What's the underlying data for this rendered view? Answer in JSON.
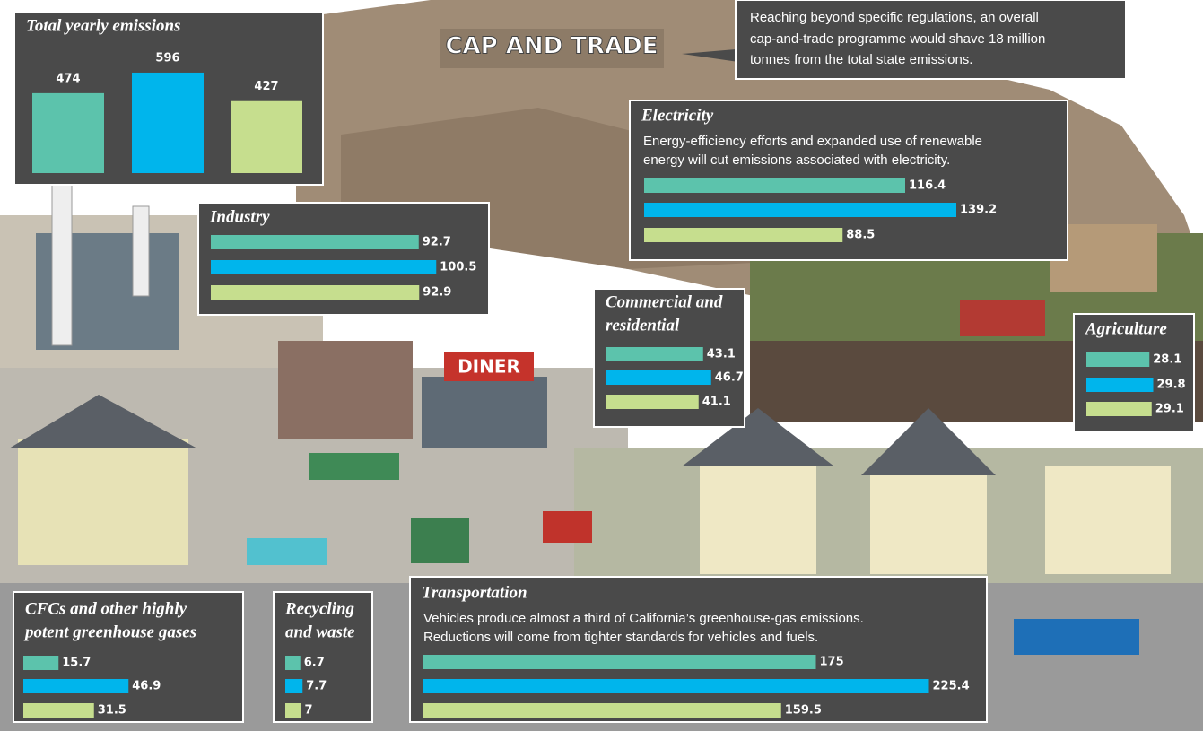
{
  "scene_labels": [
    "CAP AND TRADE",
    "DINER"
  ],
  "annotation": {
    "lines": [
      "Reaching beyond specific regulations, an overall",
      "cap-and-trade programme would shave 18 million",
      "tonnes from the total state emissions."
    ]
  },
  "chart_data": [
    {
      "type": "bar",
      "orientation": "vertical",
      "title_lines": [
        "Total yearly emissions"
      ],
      "values": [
        474,
        596,
        427
      ],
      "colors": [
        "#5cc3ac",
        "#00b5ec",
        "#c6de8e"
      ]
    },
    {
      "type": "bar",
      "orientation": "horizontal",
      "title_lines": [
        "Industry"
      ],
      "values": [
        92.7,
        100.5,
        92.9
      ],
      "colors": [
        "#5cc3ac",
        "#00b5ec",
        "#c6de8e"
      ]
    },
    {
      "type": "bar",
      "orientation": "horizontal",
      "title_lines": [
        "Electricity"
      ],
      "description_lines": [
        "Energy-efficiency efforts and expanded use of renewable",
        "energy will cut emissions associated with electricity."
      ],
      "values": [
        116.4,
        139.2,
        88.5
      ],
      "colors": [
        "#5cc3ac",
        "#00b5ec",
        "#c6de8e"
      ]
    },
    {
      "type": "bar",
      "orientation": "horizontal",
      "title_lines": [
        "Commercial and",
        "residential"
      ],
      "values": [
        43.1,
        46.7,
        41.1
      ],
      "colors": [
        "#5cc3ac",
        "#00b5ec",
        "#c6de8e"
      ]
    },
    {
      "type": "bar",
      "orientation": "horizontal",
      "title_lines": [
        "Agriculture"
      ],
      "values": [
        28.1,
        29.8,
        29.1
      ],
      "colors": [
        "#5cc3ac",
        "#00b5ec",
        "#c6de8e"
      ]
    },
    {
      "type": "bar",
      "orientation": "horizontal",
      "title_lines": [
        "CFCs and other highly",
        "potent greenhouse gases"
      ],
      "values": [
        15.7,
        46.9,
        31.5
      ],
      "colors": [
        "#5cc3ac",
        "#00b5ec",
        "#c6de8e"
      ]
    },
    {
      "type": "bar",
      "orientation": "horizontal",
      "title_lines": [
        "Recycling",
        "and waste"
      ],
      "values": [
        6.7,
        7.7,
        7
      ],
      "colors": [
        "#5cc3ac",
        "#00b5ec",
        "#c6de8e"
      ]
    },
    {
      "type": "bar",
      "orientation": "horizontal",
      "title_lines": [
        "Transportation"
      ],
      "description_lines": [
        "Vehicles produce almost a third of California’s greenhouse-gas emissions.",
        "Reductions will come from tighter standards for vehicles and fuels."
      ],
      "values": [
        175,
        225.4,
        159.5
      ],
      "colors": [
        "#5cc3ac",
        "#00b5ec",
        "#c6de8e"
      ]
    }
  ]
}
